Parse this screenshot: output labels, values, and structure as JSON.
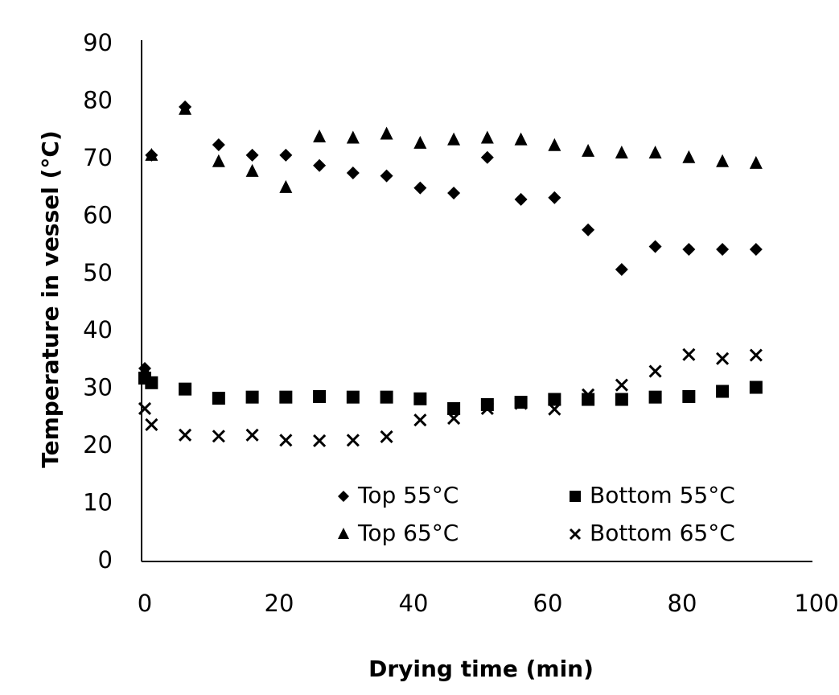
{
  "chart_data": {
    "type": "scatter",
    "x_label": "Drying time (min)",
    "y_label": "Temperature in vessel (°C)",
    "x": [
      0,
      1,
      6,
      11,
      16,
      21,
      26,
      31,
      36,
      41,
      46,
      51,
      56,
      61,
      66,
      71,
      76,
      81,
      86,
      91
    ],
    "series": [
      {
        "name": "Top 55°C",
        "color": "#000000",
        "marker": "diamond",
        "values": [
          33.6,
          70.7,
          79.1,
          72.5,
          70.7,
          70.7,
          68.9,
          67.6,
          67.1,
          65,
          64.1,
          70.3,
          63,
          63.3,
          57.7,
          50.8,
          54.8,
          54.3,
          54.3,
          54.3
        ]
      },
      {
        "name": "Bottom 55°C",
        "color": "#000000",
        "marker": "square",
        "values": [
          31.9,
          31.1,
          30,
          28.4,
          28.6,
          28.6,
          28.7,
          28.6,
          28.6,
          28.3,
          26.6,
          27.3,
          27.7,
          28.2,
          28.2,
          28.2,
          28.6,
          28.7,
          29.6,
          30.3
        ]
      },
      {
        "name": "Top 65°C",
        "color": "#000000",
        "marker": "triangle",
        "values": [
          33.3,
          70.7,
          78.7,
          69.6,
          67.9,
          65.1,
          73.9,
          73.7,
          74.4,
          72.8,
          73.4,
          73.7,
          73.4,
          72.4,
          71.4,
          71.1,
          71.1,
          70.3,
          69.6,
          69.3
        ]
      },
      {
        "name": "Bottom 65°C",
        "color": "#000000",
        "marker": "cross",
        "values": [
          26.6,
          23.8,
          22,
          21.8,
          22,
          21.1,
          21,
          21.1,
          21.7,
          24.6,
          24.9,
          26.6,
          27.5,
          26.5,
          29,
          30.7,
          33.1,
          36,
          35.3,
          35.9
        ]
      }
    ],
    "xlim": [
      0,
      100
    ],
    "xticks": [
      0,
      20,
      40,
      60,
      80,
      100
    ],
    "ylim": [
      0,
      90
    ],
    "yticks": [
      0,
      10,
      20,
      30,
      40,
      50,
      60,
      70,
      80,
      90
    ],
    "grid": false
  }
}
